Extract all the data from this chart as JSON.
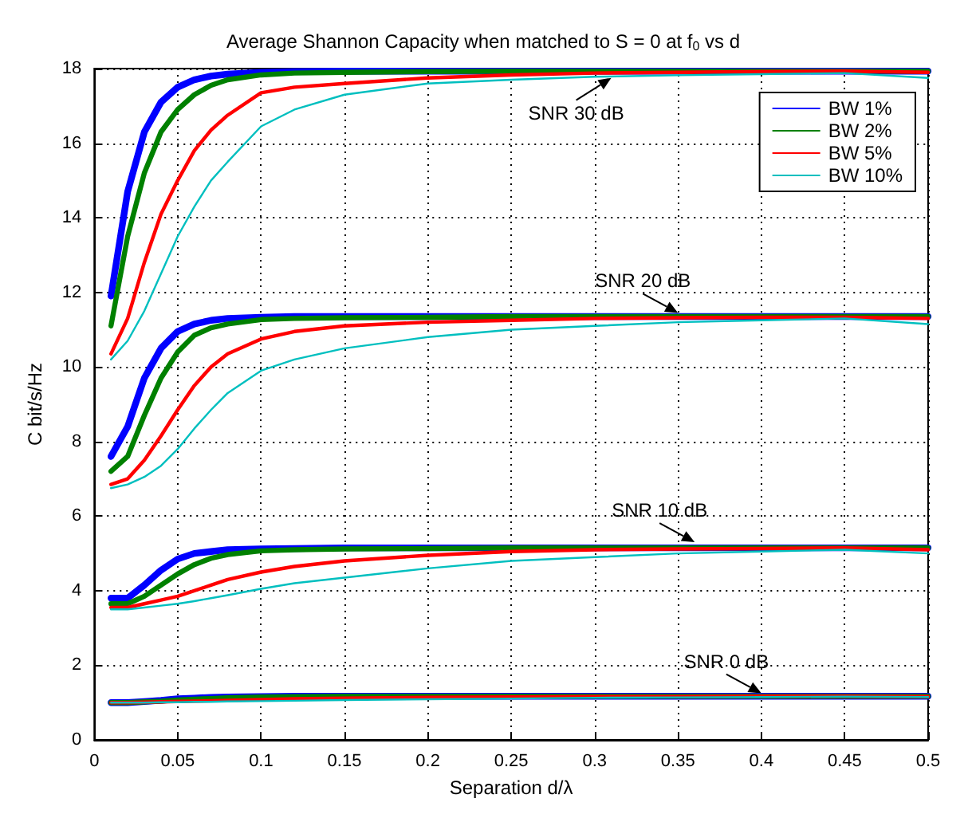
{
  "chart_data": {
    "type": "line",
    "title": "Average Shannon Capacity when matched to S = 0 at f$_{0}$ vs d",
    "xlabel": "Separation d/λ",
    "ylabel": "C bit/s/Hz",
    "x": [
      0.01,
      0.02,
      0.03,
      0.04,
      0.05,
      0.06,
      0.07,
      0.08,
      0.1,
      0.12,
      0.15,
      0.2,
      0.25,
      0.3,
      0.35,
      0.4,
      0.45,
      0.5
    ],
    "series": [
      {
        "name": "BW 1%",
        "color": "#0000ff",
        "values": [
          11.9,
          14.7,
          16.3,
          17.1,
          17.5,
          17.7,
          17.8,
          17.85,
          17.9,
          17.92,
          17.93,
          17.93,
          17.93,
          17.93,
          17.93,
          17.93,
          17.93,
          17.93
        ]
      },
      {
        "name": "BW 2%",
        "color": "#008000",
        "values": [
          11.1,
          13.5,
          15.2,
          16.3,
          16.9,
          17.3,
          17.55,
          17.7,
          17.83,
          17.88,
          17.9,
          17.92,
          17.93,
          17.93,
          17.93,
          17.93,
          17.93,
          17.93
        ]
      },
      {
        "name": "BW 5%",
        "color": "#ff0000",
        "values": [
          10.35,
          11.3,
          12.8,
          14.1,
          15.0,
          15.8,
          16.35,
          16.75,
          17.35,
          17.5,
          17.6,
          17.75,
          17.83,
          17.88,
          17.9,
          17.92,
          17.93,
          17.9
        ]
      },
      {
        "name": "BW 10%",
        "color": "#00bfbf",
        "values": [
          10.2,
          10.7,
          11.5,
          12.5,
          13.5,
          14.3,
          15.0,
          15.5,
          16.45,
          16.9,
          17.3,
          17.6,
          17.7,
          17.78,
          17.82,
          17.85,
          17.88,
          17.75
        ]
      },
      {
        "color": "#0000ff",
        "values": [
          7.6,
          8.4,
          9.7,
          10.5,
          10.95,
          11.15,
          11.25,
          11.3,
          11.33,
          11.35,
          11.35,
          11.35,
          11.35,
          11.35,
          11.35,
          11.35,
          11.35,
          11.35
        ]
      },
      {
        "color": "#008000",
        "values": [
          7.2,
          7.6,
          8.7,
          9.7,
          10.4,
          10.85,
          11.05,
          11.15,
          11.27,
          11.3,
          11.32,
          11.33,
          11.35,
          11.35,
          11.35,
          11.35,
          11.35,
          11.35
        ]
      },
      {
        "color": "#ff0000",
        "values": [
          6.85,
          7.0,
          7.5,
          8.15,
          8.85,
          9.5,
          10.0,
          10.35,
          10.75,
          10.95,
          11.1,
          11.2,
          11.25,
          11.3,
          11.32,
          11.33,
          11.33,
          11.3
        ]
      },
      {
        "color": "#00bfbf",
        "values": [
          6.75,
          6.85,
          7.05,
          7.35,
          7.8,
          8.35,
          8.85,
          9.3,
          9.9,
          10.2,
          10.5,
          10.8,
          11.0,
          11.1,
          11.2,
          11.25,
          11.3,
          11.15
        ]
      },
      {
        "color": "#0000ff",
        "values": [
          3.8,
          3.8,
          4.15,
          4.55,
          4.85,
          5.0,
          5.05,
          5.1,
          5.12,
          5.13,
          5.15,
          5.15,
          5.15,
          5.15,
          5.15,
          5.15,
          5.15,
          5.15
        ]
      },
      {
        "color": "#008000",
        "values": [
          3.65,
          3.65,
          3.85,
          4.15,
          4.45,
          4.7,
          4.87,
          4.97,
          5.07,
          5.1,
          5.12,
          5.13,
          5.15,
          5.15,
          5.15,
          5.15,
          5.15,
          5.15
        ]
      },
      {
        "color": "#ff0000",
        "values": [
          3.55,
          3.55,
          3.65,
          3.75,
          3.85,
          4.0,
          4.15,
          4.3,
          4.5,
          4.65,
          4.8,
          4.95,
          5.05,
          5.1,
          5.12,
          5.13,
          5.15,
          5.1
        ]
      },
      {
        "color": "#00bfbf",
        "values": [
          3.5,
          3.5,
          3.55,
          3.6,
          3.65,
          3.72,
          3.8,
          3.88,
          4.05,
          4.2,
          4.35,
          4.6,
          4.8,
          4.9,
          5.0,
          5.05,
          5.1,
          5.0
        ]
      },
      {
        "color": "#0000ff",
        "values": [
          1.0,
          1.0,
          1.03,
          1.06,
          1.1,
          1.12,
          1.14,
          1.15,
          1.16,
          1.17,
          1.17,
          1.17,
          1.17,
          1.17,
          1.17,
          1.17,
          1.17,
          1.17
        ]
      },
      {
        "color": "#008000",
        "values": [
          1.0,
          1.0,
          1.02,
          1.04,
          1.07,
          1.09,
          1.11,
          1.13,
          1.15,
          1.16,
          1.17,
          1.17,
          1.17,
          1.17,
          1.17,
          1.17,
          1.17,
          1.17
        ]
      },
      {
        "color": "#ff0000",
        "values": [
          1.0,
          1.0,
          1.01,
          1.02,
          1.03,
          1.04,
          1.05,
          1.06,
          1.08,
          1.1,
          1.12,
          1.14,
          1.15,
          1.16,
          1.16,
          1.17,
          1.17,
          1.16
        ]
      },
      {
        "color": "#00bfbf",
        "values": [
          1.0,
          1.0,
          1.0,
          1.01,
          1.01,
          1.02,
          1.02,
          1.03,
          1.04,
          1.05,
          1.07,
          1.09,
          1.11,
          1.13,
          1.14,
          1.15,
          1.16,
          1.15
        ]
      }
    ],
    "xlim": [
      0,
      0.5
    ],
    "xticks": [
      0,
      0.05,
      0.1,
      0.15,
      0.2,
      0.25,
      0.3,
      0.35,
      0.4,
      0.45,
      0.5
    ],
    "ylim": [
      0,
      18
    ],
    "yticks": [
      0,
      2,
      4,
      6,
      8,
      10,
      12,
      14,
      16,
      18
    ],
    "annotations": [
      {
        "text": "SNR 30 dB",
        "x": 0.31,
        "y": 17.75
      },
      {
        "text": "SNR 20 dB",
        "x": 0.35,
        "y": 11.45
      },
      {
        "text": "SNR 10 dB",
        "x": 0.36,
        "y": 5.3
      },
      {
        "text": "SNR 0 dB",
        "x": 0.4,
        "y": 1.25
      }
    ],
    "grid": true,
    "legend": "top right",
    "marker": "none",
    "line_style": "solid"
  }
}
